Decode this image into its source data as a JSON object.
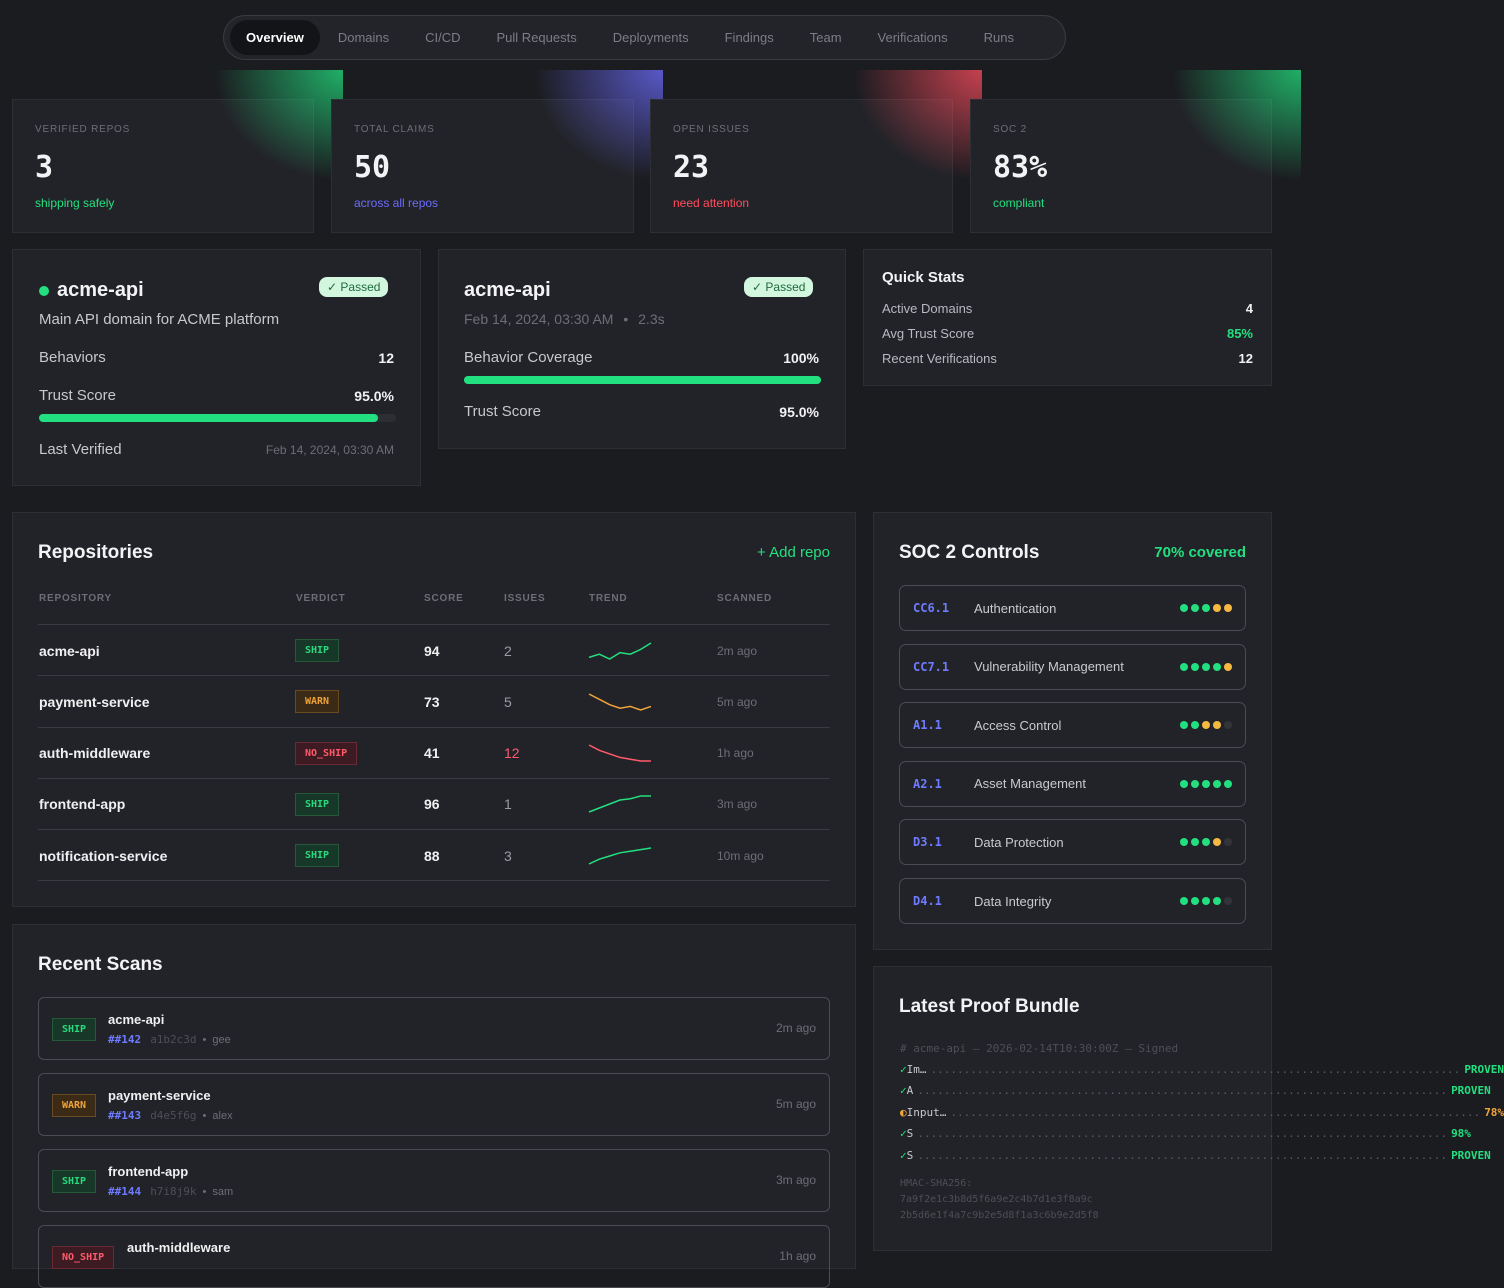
{
  "nav": {
    "tabs": [
      "Overview",
      "Domains",
      "CI/CD",
      "Pull Requests",
      "Deployments",
      "Findings",
      "Team",
      "Verifications",
      "Runs"
    ],
    "active": "Overview"
  },
  "stats": [
    {
      "label": "VERIFIED REPOS",
      "value": "3",
      "sub": "shipping safely",
      "color": "#22e07f"
    },
    {
      "label": "TOTAL CLAIMS",
      "value": "50",
      "sub": "across all repos",
      "color": "#6c6cff"
    },
    {
      "label": "OPEN ISSUES",
      "value": "23",
      "sub": "need attention",
      "color": "#ff4d5e"
    },
    {
      "label": "SOC 2",
      "value": "83%",
      "sub": "compliant",
      "color": "#22e07f"
    }
  ],
  "domain_card": {
    "name": "acme-api",
    "badge": "✓ Passed",
    "description": "Main API domain for ACME platform",
    "behaviors_label": "Behaviors",
    "behaviors": "12",
    "trust_label": "Trust Score",
    "trust": "95.0%",
    "trust_fraction": 0.95,
    "last_verified_label": "Last Verified",
    "last_verified": "Feb 14, 2024, 03:30 AM"
  },
  "verification_card": {
    "name": "acme-api",
    "badge": "✓ Passed",
    "timestamp": "Feb 14, 2024, 03:30 AM",
    "duration": "2.3s",
    "coverage_label": "Behavior Coverage",
    "coverage": "100%",
    "coverage_fraction": 1.0,
    "trust_label": "Trust Score",
    "trust": "95.0%"
  },
  "quick_stats": {
    "title": "Quick Stats",
    "rows": [
      {
        "label": "Active Domains",
        "value": "4"
      },
      {
        "label": "Avg Trust Score",
        "value": "85%"
      },
      {
        "label": "Recent Verifications",
        "value": "12"
      }
    ]
  },
  "repositories": {
    "title": "Repositories",
    "add_label": "+ Add repo",
    "headers": [
      "REPOSITORY",
      "VERDICT",
      "SCORE",
      "ISSUES",
      "TREND",
      "SCANNED"
    ],
    "rows": [
      {
        "name": "acme-api",
        "verdict": "SHIP",
        "score": "94",
        "issues": "2",
        "scanned": "2m ago",
        "trend": [
          3,
          5,
          2,
          6,
          5,
          8,
          12
        ],
        "trend_color": "#22e07f"
      },
      {
        "name": "payment-service",
        "verdict": "WARN",
        "score": "73",
        "issues": "5",
        "scanned": "5m ago",
        "trend": [
          12,
          9,
          6,
          4,
          5,
          3,
          5
        ],
        "trend_color": "#f0a43a"
      },
      {
        "name": "auth-middleware",
        "verdict": "NO_SHIP",
        "score": "41",
        "issues": "12",
        "scanned": "1h ago",
        "trend": [
          12,
          9,
          7,
          5,
          4,
          3,
          3
        ],
        "trend_color": "#ff5a6a"
      },
      {
        "name": "frontend-app",
        "verdict": "SHIP",
        "score": "96",
        "issues": "1",
        "scanned": "3m ago",
        "trend": [
          2,
          5,
          8,
          11,
          12,
          14,
          14
        ],
        "trend_color": "#22e07f"
      },
      {
        "name": "notification-service",
        "verdict": "SHIP",
        "score": "88",
        "issues": "3",
        "scanned": "10m ago",
        "trend": [
          2,
          5,
          7,
          9,
          10,
          11,
          12
        ],
        "trend_color": "#22e07f"
      }
    ]
  },
  "soc2": {
    "title": "SOC 2 Controls",
    "coverage": "70% covered",
    "controls": [
      {
        "code": "CC6.1",
        "name": "Authentication",
        "dots": [
          "g",
          "g",
          "g",
          "y",
          "y"
        ]
      },
      {
        "code": "CC7.1",
        "name": "Vulnerability Management",
        "dots": [
          "g",
          "g",
          "g",
          "g",
          "y"
        ]
      },
      {
        "code": "A1.1",
        "name": "Access Control",
        "dots": [
          "g",
          "g",
          "y",
          "y",
          "e"
        ]
      },
      {
        "code": "A2.1",
        "name": "Asset Management",
        "dots": [
          "g",
          "g",
          "g",
          "g",
          "g"
        ]
      },
      {
        "code": "D3.1",
        "name": "Data Protection",
        "dots": [
          "g",
          "g",
          "g",
          "y",
          "e"
        ]
      },
      {
        "code": "D4.1",
        "name": "Data Integrity",
        "dots": [
          "g",
          "g",
          "g",
          "g",
          "e"
        ]
      }
    ]
  },
  "recent_scans": {
    "title": "Recent Scans",
    "items": [
      {
        "verdict": "SHIP",
        "repo": "acme-api",
        "pr": "##142",
        "sha": "a1b2c3d",
        "author": "gee",
        "ago": "2m ago"
      },
      {
        "verdict": "WARN",
        "repo": "payment-service",
        "pr": "##143",
        "sha": "d4e5f6g",
        "author": "alex",
        "ago": "5m ago"
      },
      {
        "verdict": "SHIP",
        "repo": "frontend-app",
        "pr": "##144",
        "sha": "h7i8j9k",
        "author": "sam",
        "ago": "3m ago"
      },
      {
        "verdict": "NO_SHIP",
        "repo": "auth-middleware",
        "pr": "",
        "sha": "",
        "author": "",
        "ago": "1h ago"
      }
    ]
  },
  "proof_bundle": {
    "title": "Latest Proof Bundle",
    "header": "# acme-api — 2026-02-14T10:30:00Z — Signed",
    "lines": [
      {
        "mark": "✓",
        "label": "Im…",
        "result": "PROVEN",
        "color": "#22e07f"
      },
      {
        "mark": "✓",
        "label": "A",
        "result": "PROVEN",
        "color": "#22e07f"
      },
      {
        "mark": "◐",
        "label": "Input…",
        "result": "78%",
        "color": "#f0a43a"
      },
      {
        "mark": "✓",
        "label": "S",
        "result": "98%",
        "color": "#22e07f"
      },
      {
        "mark": "✓",
        "label": "S",
        "result": "PROVEN",
        "color": "#22e07f"
      }
    ],
    "hmac_label": "HMAC-SHA256:",
    "hmac_1": "7a9f2e1c3b8d5f6a9e2c4b7d1e3f8a9c",
    "hmac_2": "2b5d6e1f4a7c9b2e5d8f1a3c6b9e2d5f8"
  }
}
